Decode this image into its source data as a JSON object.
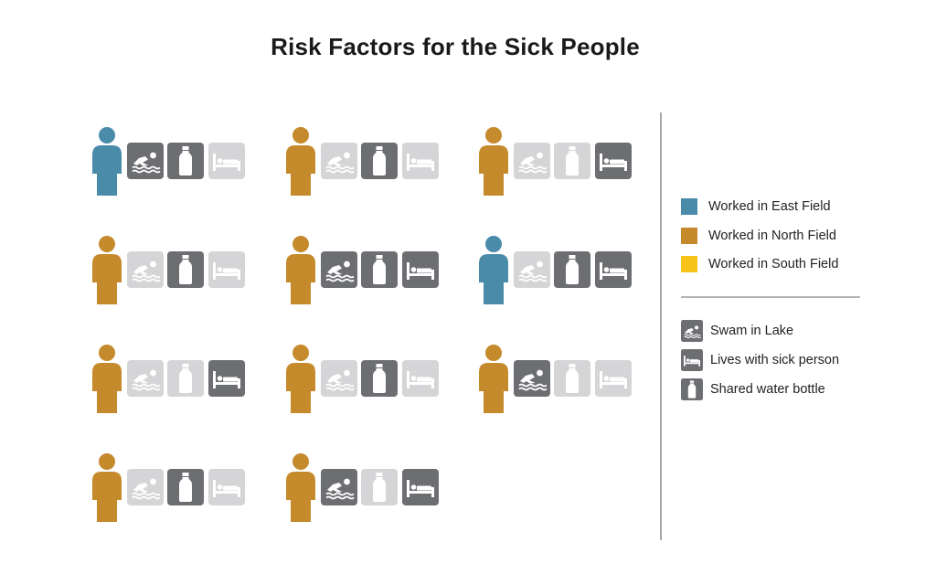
{
  "title": "Risk Factors for the Sick People",
  "colors": {
    "east": "#4A8BAA",
    "north": "#C58A2C",
    "south": "#F5C31A",
    "factor_on": "#6D6E72",
    "factor_off": "#D5D5D7"
  },
  "legend": {
    "fields": [
      {
        "key": "east",
        "label": "Worked in East Field"
      },
      {
        "key": "north",
        "label": "Worked in North Field"
      },
      {
        "key": "south",
        "label": "Worked in South Field"
      }
    ],
    "factors": [
      {
        "icon": "swim-icon",
        "label": "Swam in Lake"
      },
      {
        "icon": "bed-icon",
        "label": "Lives with sick person"
      },
      {
        "icon": "bottle-icon",
        "label": "Shared water bottle"
      }
    ]
  },
  "people": [
    {
      "field": "east",
      "swam": true,
      "bottle": true,
      "bed": false
    },
    {
      "field": "north",
      "swam": false,
      "bottle": true,
      "bed": false
    },
    {
      "field": "north",
      "swam": false,
      "bottle": false,
      "bed": true
    },
    {
      "field": "north",
      "swam": false,
      "bottle": true,
      "bed": false
    },
    {
      "field": "north",
      "swam": true,
      "bottle": true,
      "bed": true
    },
    {
      "field": "east",
      "swam": false,
      "bottle": true,
      "bed": true
    },
    {
      "field": "north",
      "swam": false,
      "bottle": false,
      "bed": true
    },
    {
      "field": "north",
      "swam": false,
      "bottle": true,
      "bed": false
    },
    {
      "field": "north",
      "swam": true,
      "bottle": false,
      "bed": false
    },
    {
      "field": "north",
      "swam": false,
      "bottle": true,
      "bed": false
    },
    {
      "field": "north",
      "swam": true,
      "bottle": false,
      "bed": true
    }
  ]
}
